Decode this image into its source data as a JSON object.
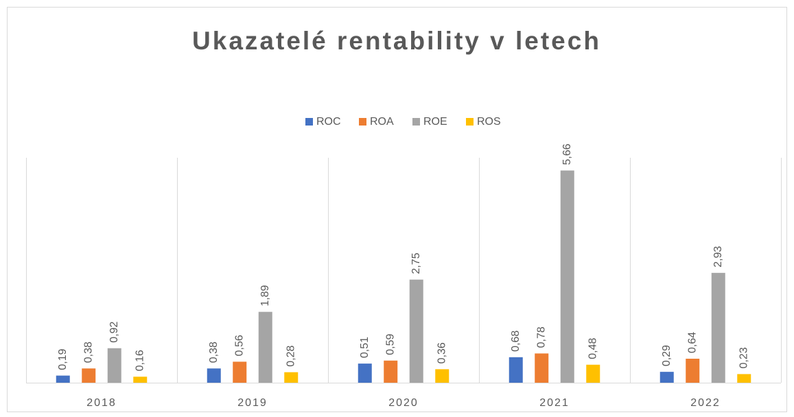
{
  "chart_data": {
    "type": "bar",
    "title": "Ukazatelé rentability v letech",
    "categories": [
      "2018",
      "2019",
      "2020",
      "2021",
      "2022"
    ],
    "series": [
      {
        "name": "ROC",
        "color": "#4472c4",
        "values": [
          0.19,
          0.38,
          0.51,
          0.68,
          0.29
        ],
        "value_labels": [
          "0,19",
          "0,38",
          "0,51",
          "0,68",
          "0,29"
        ]
      },
      {
        "name": "ROA",
        "color": "#ed7d31",
        "values": [
          0.38,
          0.56,
          0.59,
          0.78,
          0.64
        ],
        "value_labels": [
          "0,38",
          "0,56",
          "0,59",
          "0,78",
          "0,64"
        ]
      },
      {
        "name": "ROE",
        "color": "#a5a5a5",
        "values": [
          0.92,
          1.89,
          2.75,
          5.66,
          2.93
        ],
        "value_labels": [
          "0,92",
          "1,89",
          "2,75",
          "5,66",
          "2,93"
        ]
      },
      {
        "name": "ROS",
        "color": "#ffc000",
        "values": [
          0.16,
          0.28,
          0.36,
          0.48,
          0.23
        ],
        "value_labels": [
          "0,16",
          "0,28",
          "0,36",
          "0,48",
          "0,23"
        ]
      }
    ],
    "ylim": [
      0,
      6
    ],
    "legend": "top"
  }
}
